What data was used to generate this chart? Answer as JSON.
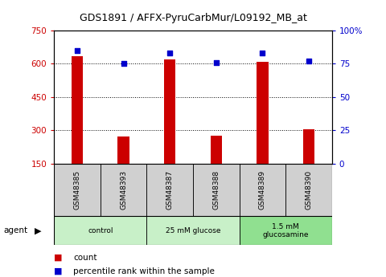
{
  "title": "GDS1891 / AFFX-PyruCarbMur/L09192_MB_at",
  "samples": [
    "GSM48385",
    "GSM48393",
    "GSM48387",
    "GSM48388",
    "GSM48389",
    "GSM48390"
  ],
  "count_values": [
    635,
    270,
    620,
    275,
    610,
    305
  ],
  "percentile_values": [
    85,
    75,
    83,
    76,
    83,
    77
  ],
  "ylim_left": [
    150,
    750
  ],
  "ylim_right": [
    0,
    100
  ],
  "yticks_left": [
    150,
    300,
    450,
    600,
    750
  ],
  "yticks_right": [
    0,
    25,
    50,
    75,
    100
  ],
  "ytick_labels_right": [
    "0",
    "25",
    "50",
    "75",
    "100%"
  ],
  "bar_color": "#cc0000",
  "dot_color": "#0000cc",
  "plot_bg_color": "#ffffff",
  "sample_box_color": "#d0d0d0",
  "group_colors": [
    "#c8f0c8",
    "#c8f0c8",
    "#90e090"
  ],
  "group_labels": [
    "control",
    "25 mM glucose",
    "1.5 mM\nglucosamine"
  ],
  "group_starts": [
    0,
    2,
    4
  ],
  "group_ends": [
    1,
    3,
    5
  ],
  "legend_count_color": "#cc0000",
  "legend_pct_color": "#0000cc"
}
